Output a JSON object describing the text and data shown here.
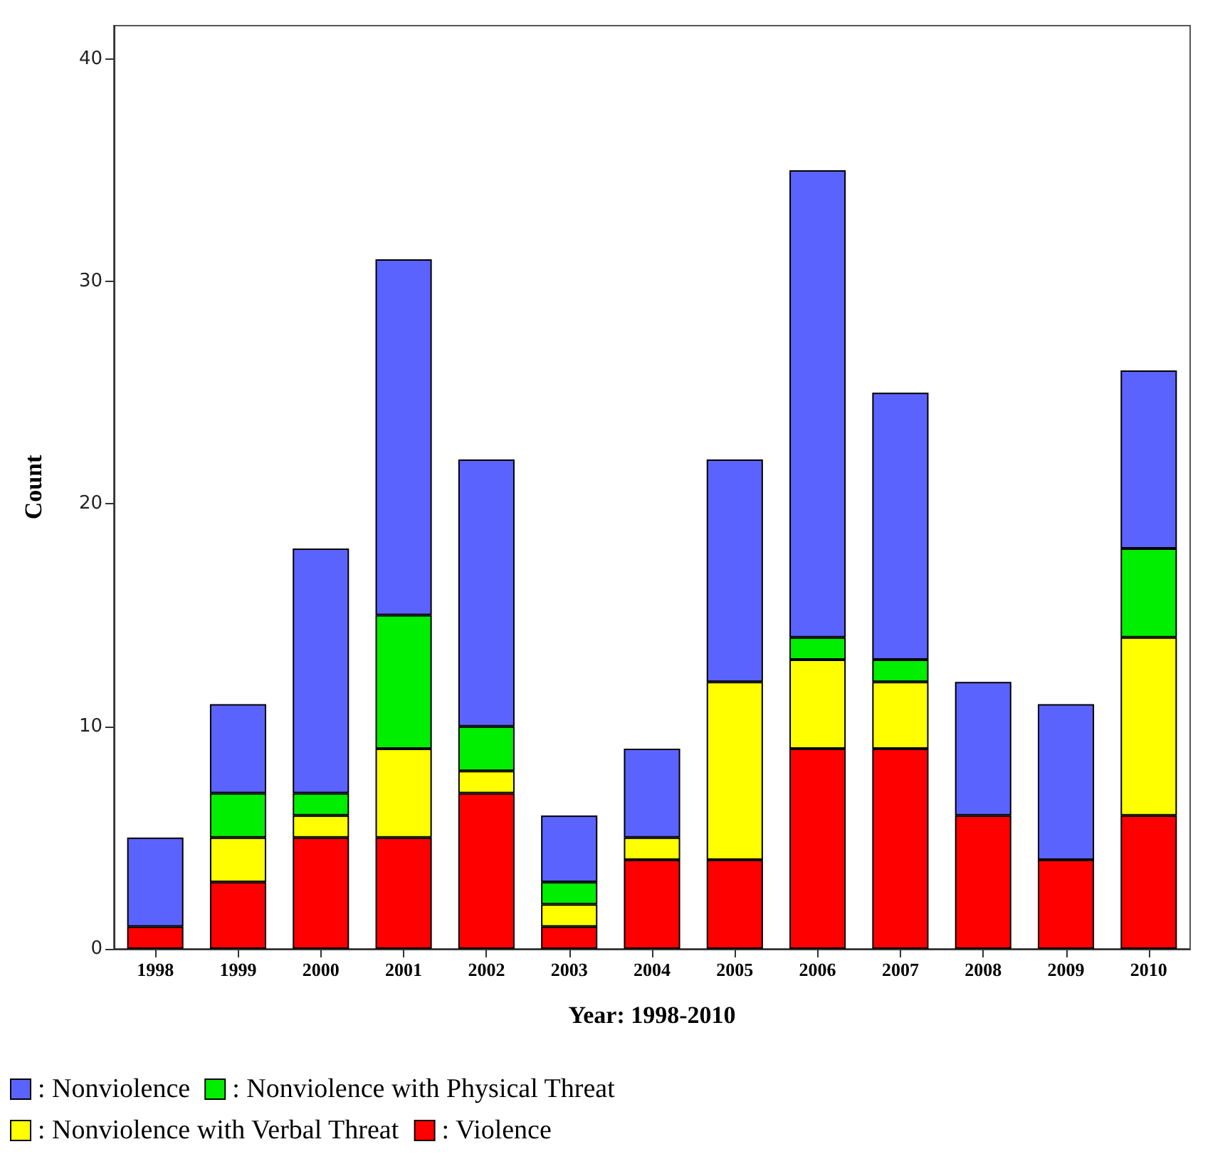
{
  "chart_data": {
    "type": "bar",
    "stacked": true,
    "xlabel": "Year: 1998-2010",
    "ylabel": "Count",
    "categories": [
      "1998",
      "1999",
      "2000",
      "2001",
      "2002",
      "2003",
      "2004",
      "2005",
      "2006",
      "2007",
      "2008",
      "2009",
      "2010"
    ],
    "series": [
      {
        "name": ": Violence",
        "color": "#ff0000",
        "values": [
          1,
          3,
          5,
          5,
          7,
          1,
          4,
          4,
          9,
          9,
          6,
          4,
          6
        ]
      },
      {
        "name": ": Nonviolence with Verbal Threat",
        "color": "#ffff00",
        "values": [
          0,
          2,
          1,
          4,
          1,
          1,
          1,
          8,
          4,
          3,
          0,
          0,
          8
        ]
      },
      {
        "name": ": Nonviolence with Physical Threat",
        "color": "#00ee00",
        "values": [
          0,
          2,
          1,
          6,
          2,
          1,
          0,
          0,
          1,
          1,
          0,
          0,
          4
        ]
      },
      {
        "name": ": Nonviolence",
        "color": "#5b63ff",
        "values": [
          4,
          4,
          11,
          16,
          12,
          3,
          4,
          10,
          21,
          12,
          6,
          7,
          8
        ]
      }
    ],
    "ylim": [
      0,
      41.5
    ],
    "yticks": [
      0,
      10,
      20,
      30,
      40
    ],
    "grid": false,
    "legend": "bottom"
  }
}
